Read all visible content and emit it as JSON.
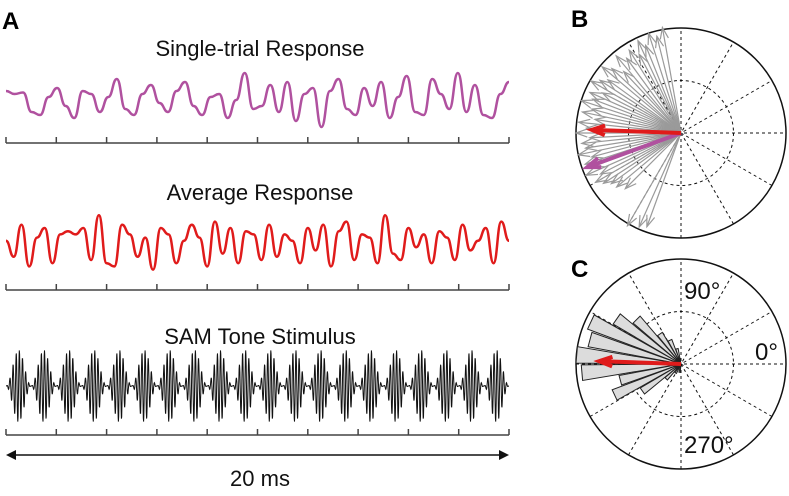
{
  "chart_data": [
    {
      "panel": "A",
      "type": "line",
      "title": "Single-trial Response",
      "color": "#b0519f",
      "x_range_ms": [
        0,
        20
      ],
      "x_ticks_ms": [
        0,
        2,
        4,
        6,
        8,
        10,
        12,
        14,
        16,
        18,
        20
      ],
      "values": [
        0.3,
        0.2,
        0.25,
        -0.4,
        -0.5,
        0.1,
        0.4,
        -0.2,
        -0.6,
        0.3,
        0.2,
        -0.4,
        0.1,
        0.7,
        -0.3,
        -0.5,
        0.2,
        0.5,
        -0.1,
        -0.4,
        0.3,
        0.6,
        -0.2,
        -0.5,
        0.1,
        0.2,
        -0.6,
        0.0,
        0.9,
        -0.3,
        -0.2,
        0.5,
        -0.4,
        0.6,
        -0.7,
        0.2,
        0.4,
        -0.9,
        0.3,
        0.7,
        -0.3,
        -0.5,
        0.4,
        -0.2,
        0.6,
        -0.6,
        0.1,
        0.8,
        -0.4,
        -0.5,
        0.7,
        0.2,
        -0.3,
        0.9,
        -0.4,
        0.5,
        -0.5,
        -0.6,
        0.2,
        0.6
      ]
    },
    {
      "panel": "A",
      "type": "line",
      "title": "Average Response",
      "color": "#e01b1b",
      "x_range_ms": [
        0,
        20
      ],
      "x_ticks_ms": [
        0,
        2,
        4,
        6,
        8,
        10,
        12,
        14,
        16,
        18,
        20
      ],
      "values": [
        0.1,
        -0.4,
        0.6,
        -0.7,
        0.2,
        0.5,
        -0.6,
        0.3,
        0.4,
        0.3,
        0.5,
        -0.5,
        0.9,
        -0.6,
        -0.7,
        0.6,
        0.3,
        -0.4,
        0.2,
        -0.8,
        0.5,
        0.3,
        -0.6,
        0.1,
        0.6,
        0.2,
        -0.7,
        0.7,
        -0.3,
        0.5,
        -0.6,
        0.4,
        0.3,
        -0.5,
        0.6,
        -0.4,
        0.3,
        0.1,
        -0.6,
        0.5,
        -0.2,
        0.6,
        -0.7,
        0.4,
        0.7,
        -0.5,
        0.3,
        0.2,
        -0.6,
        0.9,
        -0.3,
        -0.5,
        0.5,
        -0.1,
        0.3,
        -0.6,
        0.4,
        0.2,
        -0.5,
        0.6,
        -0.2,
        0.1,
        0.5,
        -0.6,
        0.7,
        0.1
      ]
    },
    {
      "panel": "A",
      "type": "line",
      "title": "SAM Tone Stimulus",
      "color": "#111111",
      "x_range_ms": [
        0,
        20
      ],
      "modulation_cycles": 20,
      "carrier_cycles_per_envelope": 8,
      "x_ticks_ms": [
        0,
        2,
        4,
        6,
        8,
        10,
        12,
        14,
        16,
        18,
        20
      ],
      "scale_bar_label": "20 ms"
    },
    {
      "panel": "B",
      "type": "polar",
      "vectors_color": "#9a9a9a",
      "trial_vectors": [
        [
          100,
          1.02
        ],
        [
          104,
          0.95
        ],
        [
          108,
          1.0
        ],
        [
          112,
          0.9
        ],
        [
          115,
          0.97
        ],
        [
          118,
          0.85
        ],
        [
          122,
          0.93
        ],
        [
          126,
          0.88
        ],
        [
          130,
          0.96
        ],
        [
          133,
          0.8
        ],
        [
          137,
          0.9
        ],
        [
          140,
          0.98
        ],
        [
          144,
          0.86
        ],
        [
          147,
          0.92
        ],
        [
          150,
          0.99
        ],
        [
          153,
          0.84
        ],
        [
          156,
          0.95
        ],
        [
          159,
          0.9
        ],
        [
          162,
          1.0
        ],
        [
          165,
          0.88
        ],
        [
          168,
          0.96
        ],
        [
          171,
          0.83
        ],
        [
          174,
          0.98
        ],
        [
          177,
          0.9
        ],
        [
          180,
          1.0
        ],
        [
          183,
          0.87
        ],
        [
          186,
          0.95
        ],
        [
          189,
          0.92
        ],
        [
          192,
          1.0
        ],
        [
          195,
          0.88
        ],
        [
          198,
          0.96
        ],
        [
          201,
          0.9
        ],
        [
          204,
          0.99
        ],
        [
          207,
          0.86
        ],
        [
          210,
          0.94
        ],
        [
          213,
          0.88
        ],
        [
          216,
          0.82
        ],
        [
          220,
          0.8
        ],
        [
          225,
          0.75
        ],
        [
          240,
          1.02
        ],
        [
          246,
          0.98
        ],
        [
          250,
          0.95
        ]
      ],
      "mean_vector": {
        "angle_deg": 178,
        "length": 0.85,
        "color": "#e01b1b"
      },
      "single_trial_vector": {
        "angle_deg": 200,
        "length": 0.95,
        "color": "#b0519f"
      }
    },
    {
      "panel": "C",
      "type": "polar-histogram",
      "bar_color": "#dcdcdc",
      "bins": [
        [
          105,
          0.15
        ],
        [
          115,
          0.25
        ],
        [
          125,
          0.35
        ],
        [
          135,
          0.6
        ],
        [
          145,
          0.75
        ],
        [
          155,
          0.95
        ],
        [
          165,
          0.9
        ],
        [
          175,
          1.0
        ],
        [
          185,
          0.95
        ],
        [
          195,
          0.6
        ],
        [
          205,
          0.7
        ],
        [
          215,
          0.45
        ],
        [
          225,
          0.2
        ],
        [
          240,
          0.1
        ],
        [
          260,
          0.08
        ]
      ],
      "mean_vector": {
        "angle_deg": 178,
        "length": 0.78,
        "color": "#e01b1b"
      },
      "angle_labels": [
        "90°",
        "0°",
        "270°"
      ]
    }
  ],
  "panels": {
    "a": "A",
    "b": "B",
    "c": "C"
  }
}
